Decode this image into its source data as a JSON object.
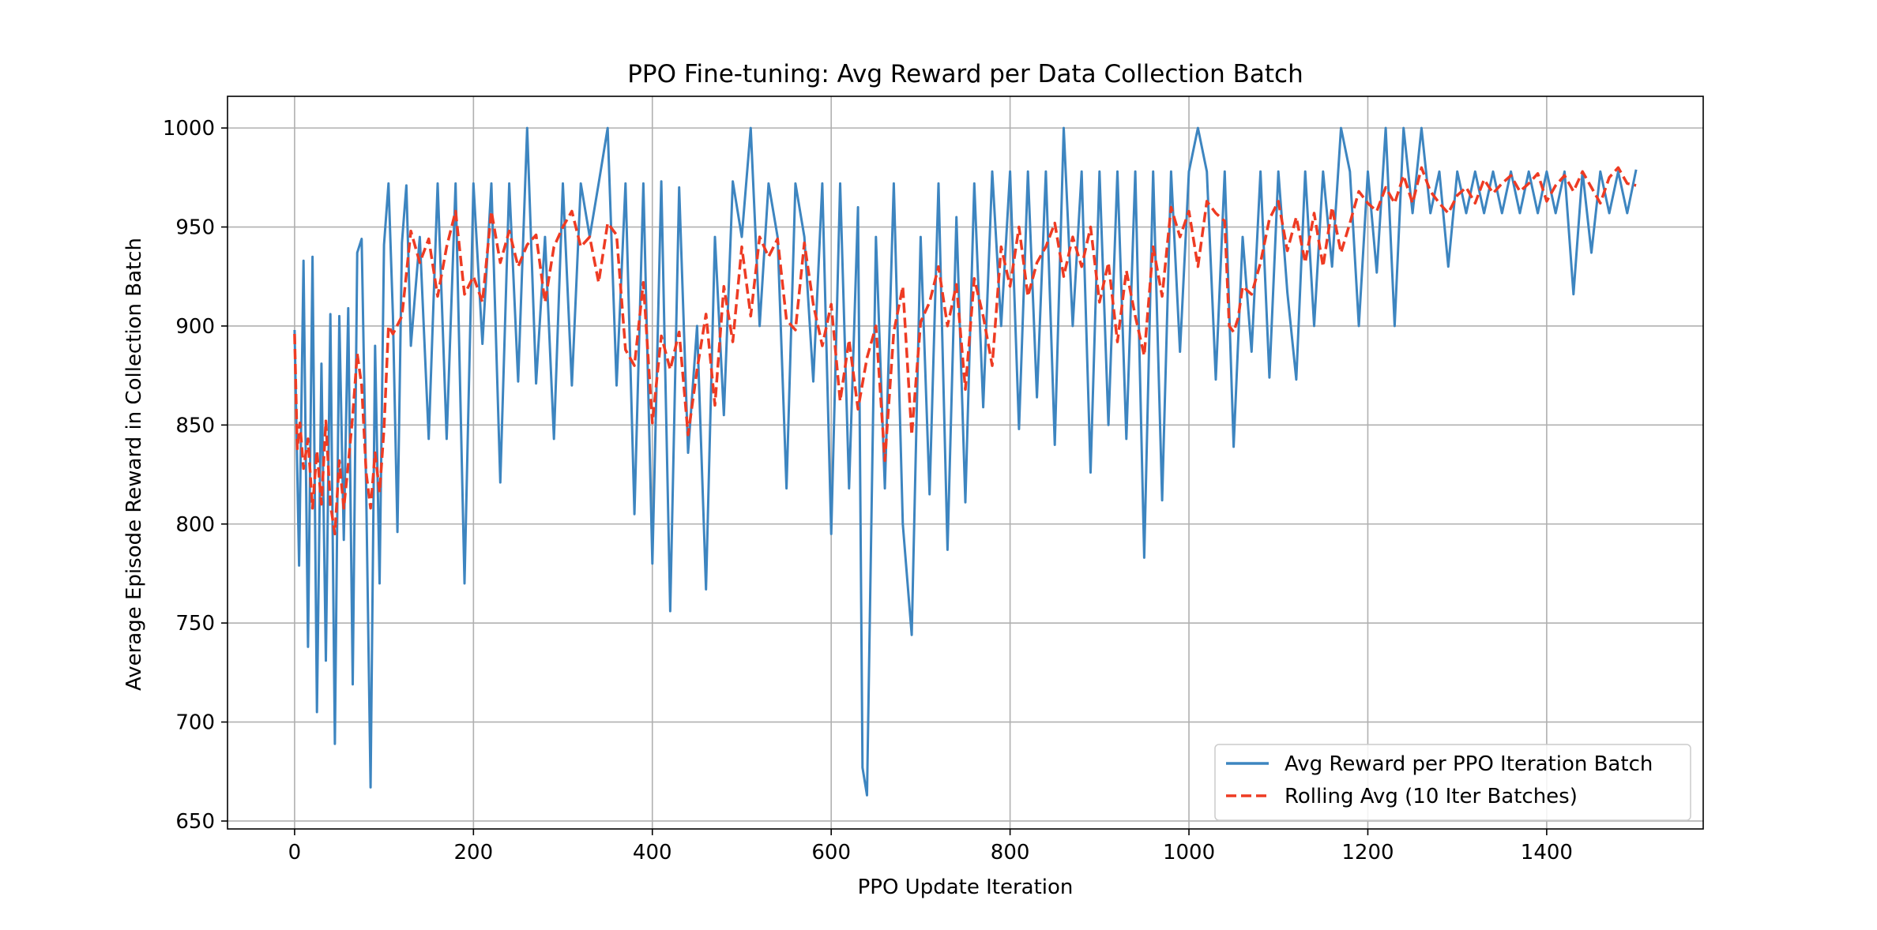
{
  "chart_data": {
    "type": "line",
    "title": "PPO Fine-tuning: Avg Reward per Data Collection Batch",
    "xlabel": "PPO Update Iteration",
    "ylabel": "Average Episode Reward in Collection Batch",
    "xlim": [
      -75,
      1575
    ],
    "ylim": [
      646,
      1016
    ],
    "xticks": [
      0,
      200,
      400,
      600,
      800,
      1000,
      1200,
      1400
    ],
    "yticks": [
      650,
      700,
      750,
      800,
      850,
      900,
      950,
      1000
    ],
    "grid": true,
    "legend_position": "lower-right",
    "series": [
      {
        "name": "Avg Reward per PPO Iteration Batch",
        "color": "#3d85c0",
        "style": "solid",
        "x": [
          0,
          5,
          10,
          15,
          20,
          25,
          30,
          35,
          40,
          45,
          50,
          55,
          60,
          65,
          70,
          75,
          80,
          85,
          90,
          95,
          100,
          105,
          110,
          115,
          120,
          125,
          130,
          140,
          150,
          160,
          170,
          180,
          190,
          200,
          210,
          220,
          230,
          240,
          250,
          260,
          270,
          280,
          290,
          300,
          310,
          320,
          330,
          340,
          350,
          360,
          370,
          380,
          390,
          400,
          410,
          420,
          430,
          440,
          450,
          460,
          470,
          480,
          490,
          500,
          510,
          520,
          530,
          540,
          550,
          560,
          570,
          580,
          590,
          600,
          610,
          620,
          630,
          635,
          640,
          650,
          660,
          670,
          680,
          690,
          700,
          710,
          720,
          730,
          740,
          750,
          760,
          770,
          780,
          790,
          800,
          810,
          820,
          830,
          840,
          850,
          860,
          870,
          880,
          890,
          900,
          910,
          920,
          930,
          940,
          950,
          960,
          970,
          980,
          990,
          1000,
          1010,
          1020,
          1030,
          1040,
          1050,
          1060,
          1070,
          1080,
          1090,
          1100,
          1110,
          1120,
          1130,
          1140,
          1150,
          1160,
          1170,
          1180,
          1190,
          1200,
          1210,
          1220,
          1230,
          1240,
          1250,
          1260,
          1270,
          1280,
          1290,
          1300,
          1310,
          1320,
          1330,
          1340,
          1350,
          1360,
          1370,
          1380,
          1390,
          1400,
          1410,
          1420,
          1430,
          1440,
          1450,
          1460,
          1470,
          1480,
          1490,
          1500
        ],
        "values": [
          898,
          779,
          933,
          738,
          935,
          705,
          881,
          731,
          906,
          689,
          905,
          792,
          909,
          719,
          937,
          944,
          818,
          667,
          890,
          770,
          941,
          972,
          905,
          796,
          942,
          971,
          890,
          945,
          843,
          972,
          843,
          972,
          770,
          972,
          891,
          972,
          821,
          972,
          872,
          1000,
          871,
          945,
          843,
          972,
          870,
          972,
          945,
          972,
          1000,
          870,
          972,
          805,
          972,
          780,
          973,
          756,
          970,
          836,
          900,
          767,
          945,
          855,
          973,
          945,
          1000,
          900,
          972,
          945,
          818,
          972,
          945,
          872,
          972,
          795,
          972,
          818,
          960,
          677,
          663,
          945,
          818,
          972,
          800,
          744,
          945,
          815,
          972,
          787,
          955,
          811,
          972,
          859,
          978,
          900,
          978,
          848,
          978,
          864,
          978,
          840,
          1000,
          900,
          978,
          826,
          978,
          850,
          978,
          843,
          978,
          783,
          978,
          812,
          978,
          887,
          978,
          1000,
          978,
          873,
          978,
          839,
          945,
          887,
          978,
          874,
          978,
          917,
          873,
          978,
          900,
          978,
          930,
          1000,
          978,
          900,
          978,
          927,
          1000,
          900,
          1000,
          957,
          1000,
          957,
          978,
          930,
          978,
          957,
          978,
          957,
          978,
          957,
          978,
          957,
          978,
          957,
          978,
          957,
          978,
          916,
          978,
          937,
          978,
          957,
          978,
          957,
          979
        ]
      },
      {
        "name": "Rolling Avg (10 Iter Batches)",
        "color": "#ee3b23",
        "style": "dashed",
        "x": [
          0,
          3,
          6,
          10,
          15,
          20,
          25,
          30,
          35,
          40,
          45,
          50,
          55,
          60,
          65,
          70,
          75,
          80,
          85,
          90,
          95,
          100,
          105,
          110,
          120,
          130,
          140,
          150,
          160,
          170,
          180,
          190,
          200,
          210,
          220,
          230,
          240,
          250,
          260,
          270,
          280,
          290,
          300,
          310,
          320,
          330,
          340,
          350,
          360,
          370,
          380,
          390,
          400,
          410,
          420,
          430,
          440,
          450,
          460,
          470,
          480,
          490,
          500,
          510,
          520,
          530,
          540,
          550,
          560,
          570,
          580,
          590,
          600,
          610,
          620,
          630,
          640,
          650,
          660,
          670,
          680,
          690,
          700,
          710,
          720,
          730,
          740,
          750,
          760,
          770,
          780,
          790,
          800,
          810,
          820,
          830,
          840,
          850,
          860,
          870,
          880,
          890,
          900,
          910,
          920,
          930,
          940,
          950,
          960,
          970,
          980,
          990,
          1000,
          1010,
          1020,
          1030,
          1040,
          1045,
          1050,
          1055,
          1060,
          1070,
          1080,
          1090,
          1100,
          1110,
          1120,
          1130,
          1140,
          1150,
          1160,
          1170,
          1180,
          1190,
          1200,
          1210,
          1220,
          1230,
          1240,
          1250,
          1260,
          1270,
          1280,
          1290,
          1300,
          1310,
          1320,
          1330,
          1340,
          1350,
          1360,
          1370,
          1380,
          1390,
          1400,
          1410,
          1420,
          1430,
          1440,
          1450,
          1460,
          1470,
          1480,
          1490,
          1500
        ],
        "values": [
          896,
          838,
          851,
          828,
          843,
          808,
          837,
          810,
          852,
          810,
          795,
          832,
          808,
          830,
          855,
          886,
          870,
          826,
          808,
          836,
          816,
          848,
          900,
          896,
          905,
          948,
          932,
          944,
          915,
          940,
          958,
          916,
          925,
          912,
          958,
          932,
          948,
          930,
          941,
          946,
          912,
          940,
          950,
          958,
          940,
          945,
          922,
          952,
          946,
          888,
          880,
          922,
          851,
          895,
          878,
          897,
          845,
          878,
          906,
          860,
          920,
          892,
          940,
          905,
          945,
          935,
          944,
          903,
          898,
          942,
          911,
          890,
          911,
          862,
          893,
          858,
          884,
          900,
          832,
          897,
          920,
          845,
          902,
          912,
          930,
          900,
          921,
          868,
          924,
          905,
          880,
          940,
          920,
          950,
          915,
          932,
          940,
          952,
          925,
          945,
          930,
          950,
          912,
          932,
          892,
          928,
          905,
          885,
          940,
          915,
          960,
          945,
          958,
          930,
          963,
          957,
          953,
          900,
          897,
          904,
          920,
          916,
          932,
          954,
          963,
          938,
          955,
          932,
          957,
          930,
          960,
          937,
          952,
          968,
          962,
          958,
          970,
          962,
          976,
          962,
          980,
          968,
          962,
          957,
          966,
          970,
          962,
          974,
          967,
          972,
          976,
          968,
          972,
          977,
          963,
          971,
          976,
          968,
          978,
          970,
          962,
          975,
          980,
          972,
          971
        ]
      }
    ]
  }
}
